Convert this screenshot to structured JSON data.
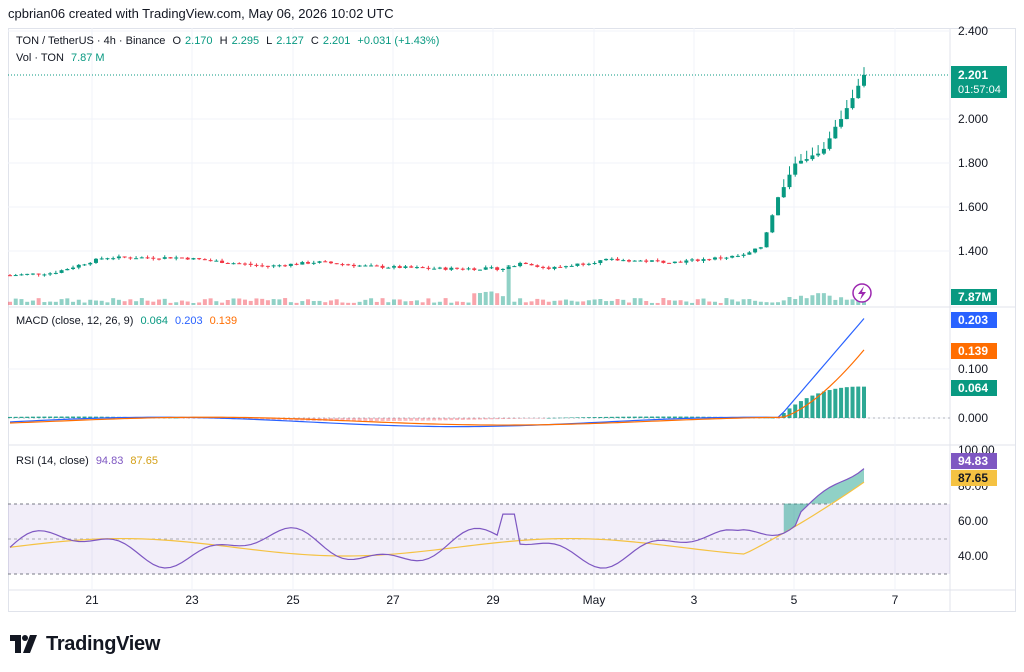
{
  "header": {
    "caption": "cpbrian06 created with TradingView.com, May 06, 2026 10:02 UTC"
  },
  "legend": {
    "symbol": "TON / TetherUS · 4h · Binance",
    "open_label": "O",
    "open": "2.170",
    "high_label": "H",
    "high": "2.295",
    "low_label": "L",
    "low": "2.127",
    "close_label": "C",
    "close": "2.201",
    "change": "+0.031 (+1.43%)",
    "vol_label": "Vol · TON",
    "vol": "7.87 M"
  },
  "price_axis": {
    "ticks": [
      "2.400",
      "2.000",
      "1.800",
      "1.600",
      "1.400"
    ],
    "last_price": "2.201",
    "countdown": "01:57:04",
    "vol_badge": "7.87M"
  },
  "macd": {
    "label": "MACD (close, 12, 26, 9)",
    "hist": "0.064",
    "macd": "0.203",
    "signal": "0.139",
    "ticks": [
      "0.100",
      "0.000"
    ]
  },
  "rsi": {
    "label": "RSI (14, close)",
    "rsi": "94.83",
    "ma": "87.65",
    "ticks": [
      "100.00",
      "80.00",
      "60.00",
      "40.00"
    ]
  },
  "time_axis": [
    "21",
    "23",
    "25",
    "27",
    "29",
    "May",
    "3",
    "5",
    "7"
  ],
  "colors": {
    "up": "#089981",
    "down": "#f23645",
    "macd": "#2962ff",
    "signal": "#ff6d00",
    "rsi": "#7e57c2",
    "rsi_ma": "#f5c242"
  },
  "footer": {
    "brand": "TradingView"
  }
}
